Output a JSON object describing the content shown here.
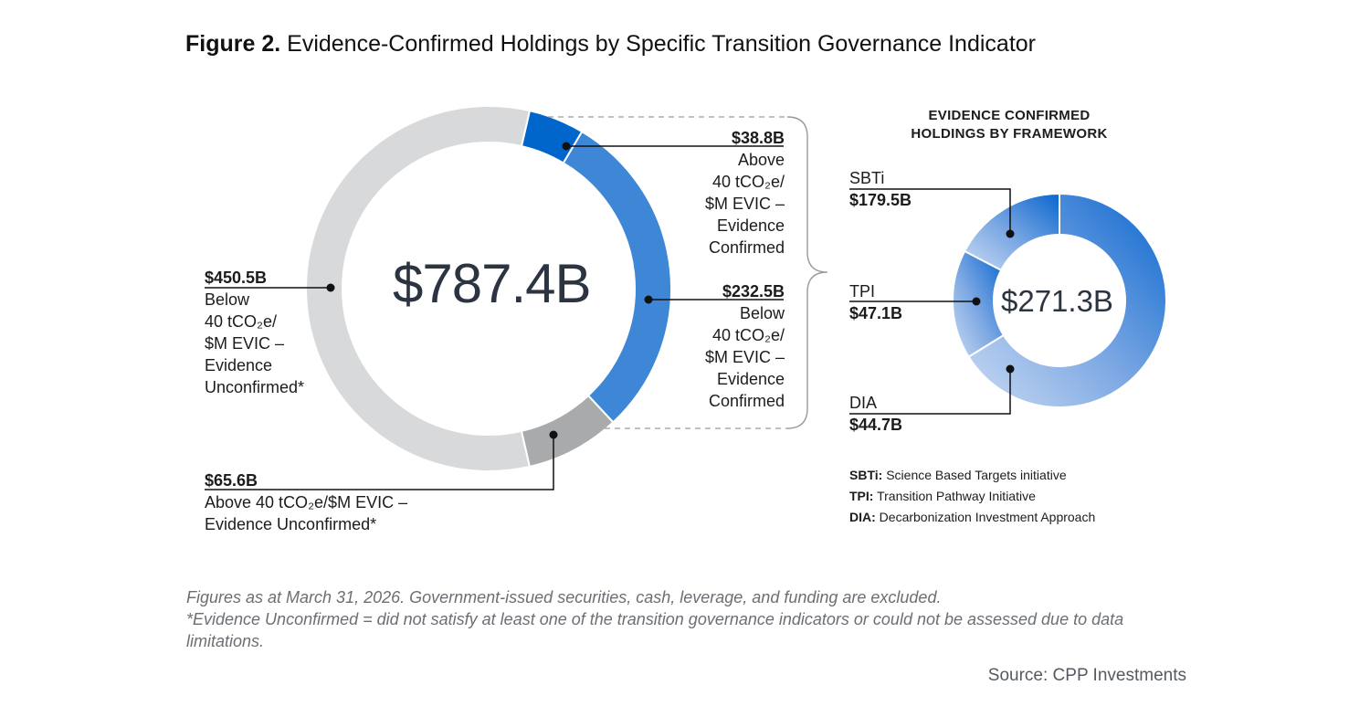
{
  "title": {
    "prefix": "Figure 2.",
    "text": "Evidence-Confirmed Holdings by Specific Transition Governance Indicator"
  },
  "chart_data": [
    {
      "type": "pie",
      "subtype": "donut",
      "center_total": "$787.4B",
      "unit": "$B",
      "slices": [
        {
          "value_label": "$38.8B",
          "value": 38.8,
          "desc_lines": [
            "Above",
            "40 tCO₂e/",
            "$M EVIC –",
            "Evidence",
            "Confirmed"
          ],
          "color": "#0066cc"
        },
        {
          "value_label": "$232.5B",
          "value": 232.5,
          "desc_lines": [
            "Below",
            "40 tCO₂e/",
            "$M EVIC –",
            "Evidence",
            "Confirmed"
          ],
          "color": "#3d87d6"
        },
        {
          "value_label": "$65.6B",
          "value": 65.6,
          "desc_lines": [
            "Above 40 tCO₂e/$M EVIC –",
            "Evidence Unconfirmed*"
          ],
          "color": "#a8aaac"
        },
        {
          "value_label": "$450.5B",
          "value": 450.5,
          "desc_lines": [
            "Below",
            "40 tCO₂e/",
            "$M EVIC –",
            "Evidence",
            "Unconfirmed*"
          ],
          "color": "#d8d9da"
        }
      ]
    },
    {
      "type": "pie",
      "subtype": "donut",
      "title_lines": [
        "EVIDENCE CONFIRMED",
        "HOLDINGS BY FRAMEWORK"
      ],
      "center_total": "$271.3B",
      "unit": "$B",
      "slices": [
        {
          "name": "SBTi",
          "value_label": "$179.5B",
          "value": 179.5,
          "color": "#1f74d4"
        },
        {
          "name": "DIA",
          "value_label": "$44.7B",
          "value": 44.7,
          "color": "#8fb4e6"
        },
        {
          "name": "TPI",
          "value_label": "$47.1B",
          "value": 47.1,
          "color": "#b0cbef"
        }
      ]
    }
  ],
  "framework_key": [
    {
      "abbr": "SBTi:",
      "full": "Science Based Targets initiative"
    },
    {
      "abbr": "TPI:",
      "full": "Transition Pathway Initiative"
    },
    {
      "abbr": "DIA:",
      "full": "Decarbonization Investment Approach"
    }
  ],
  "footnotes": [
    "Figures as at March 31, 2026. Government-issued securities, cash, leverage, and funding are excluded.",
    "*Evidence Unconfirmed = did not satisfy at least one of the transition governance indicators or could not be assessed due to data limitations."
  ],
  "source": "Source: CPP Investments"
}
